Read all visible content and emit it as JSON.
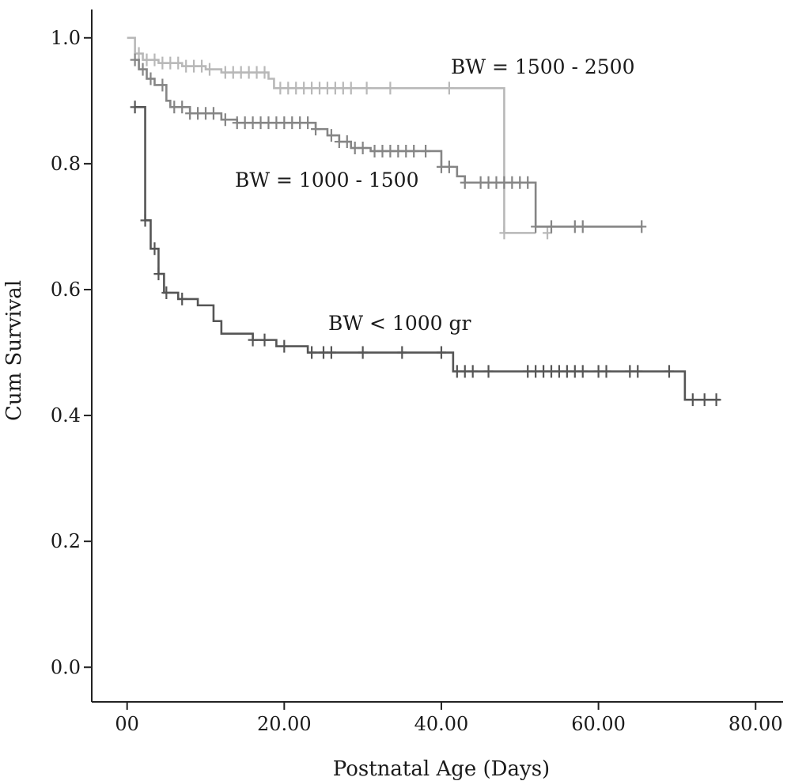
{
  "chart_data": {
    "type": "line",
    "subtype": "kaplan-meier-step",
    "xlabel": "Postnatal Age (Days)",
    "ylabel": "Cum Survival",
    "xlim": [
      -4.5,
      83.5
    ],
    "ylim": [
      -0.055,
      1.045
    ],
    "x_ticks": [
      {
        "value": 0,
        "label": "00"
      },
      {
        "value": 20,
        "label": "20.00"
      },
      {
        "value": 40,
        "label": "40.00"
      },
      {
        "value": 60,
        "label": "60.00"
      },
      {
        "value": 80,
        "label": "80.00"
      }
    ],
    "y_ticks": [
      {
        "value": 0.0,
        "label": "0.0"
      },
      {
        "value": 0.2,
        "label": "0.2"
      },
      {
        "value": 0.4,
        "label": "0.4"
      },
      {
        "value": 0.6,
        "label": "0.6"
      },
      {
        "value": 0.8,
        "label": "0.8"
      },
      {
        "value": 1.0,
        "label": "1.0"
      }
    ],
    "grid": false,
    "series": [
      {
        "name": "BW = 1500 - 2500",
        "color": "#b8b8b8",
        "steps": [
          [
            0,
            1.0
          ],
          [
            1,
            0.975
          ],
          [
            2,
            0.965
          ],
          [
            4,
            0.96
          ],
          [
            7,
            0.955
          ],
          [
            10,
            0.95
          ],
          [
            12,
            0.945
          ],
          [
            18,
            0.935
          ],
          [
            18.7,
            0.92
          ],
          [
            48,
            0.69
          ],
          [
            52,
            0.69
          ]
        ],
        "censored": [
          [
            1.5,
            0.975
          ],
          [
            2.5,
            0.965
          ],
          [
            3.5,
            0.965
          ],
          [
            4.5,
            0.96
          ],
          [
            5.5,
            0.96
          ],
          [
            6.5,
            0.96
          ],
          [
            7.5,
            0.955
          ],
          [
            8.5,
            0.955
          ],
          [
            9.5,
            0.955
          ],
          [
            10.5,
            0.95
          ],
          [
            12.5,
            0.945
          ],
          [
            13.5,
            0.945
          ],
          [
            14.5,
            0.945
          ],
          [
            15.5,
            0.945
          ],
          [
            16.5,
            0.945
          ],
          [
            17.5,
            0.945
          ],
          [
            19.5,
            0.92
          ],
          [
            20.5,
            0.92
          ],
          [
            21.5,
            0.92
          ],
          [
            22.5,
            0.92
          ],
          [
            23.5,
            0.92
          ],
          [
            24.5,
            0.92
          ],
          [
            25.5,
            0.92
          ],
          [
            26.5,
            0.92
          ],
          [
            27.5,
            0.92
          ],
          [
            28.5,
            0.92
          ],
          [
            30.5,
            0.92
          ],
          [
            33.5,
            0.92
          ],
          [
            41,
            0.92
          ],
          [
            48,
            0.69
          ],
          [
            53.5,
            0.69
          ]
        ]
      },
      {
        "name": "BW = 1000 - 1500",
        "color": "#858585",
        "steps": [
          [
            1,
            0.965
          ],
          [
            1.5,
            0.95
          ],
          [
            2.5,
            0.935
          ],
          [
            3.5,
            0.925
          ],
          [
            5,
            0.9
          ],
          [
            5.5,
            0.89
          ],
          [
            8,
            0.88
          ],
          [
            12,
            0.87
          ],
          [
            14,
            0.865
          ],
          [
            24,
            0.855
          ],
          [
            25.5,
            0.845
          ],
          [
            27,
            0.835
          ],
          [
            28.5,
            0.825
          ],
          [
            31,
            0.82
          ],
          [
            40,
            0.795
          ],
          [
            42,
            0.78
          ],
          [
            43,
            0.77
          ],
          [
            52,
            0.7
          ],
          [
            65.5,
            0.7
          ]
        ],
        "censored": [
          [
            1,
            0.965
          ],
          [
            2,
            0.95
          ],
          [
            3,
            0.935
          ],
          [
            4.5,
            0.925
          ],
          [
            6,
            0.89
          ],
          [
            7,
            0.89
          ],
          [
            8,
            0.88
          ],
          [
            9,
            0.88
          ],
          [
            10,
            0.88
          ],
          [
            11,
            0.88
          ],
          [
            12.5,
            0.87
          ],
          [
            14,
            0.865
          ],
          [
            15,
            0.865
          ],
          [
            16,
            0.865
          ],
          [
            17,
            0.865
          ],
          [
            18,
            0.865
          ],
          [
            19,
            0.865
          ],
          [
            20,
            0.865
          ],
          [
            21,
            0.865
          ],
          [
            22,
            0.865
          ],
          [
            23,
            0.865
          ],
          [
            24,
            0.855
          ],
          [
            26,
            0.845
          ],
          [
            27,
            0.835
          ],
          [
            28,
            0.835
          ],
          [
            29,
            0.825
          ],
          [
            30,
            0.825
          ],
          [
            31.5,
            0.82
          ],
          [
            32.5,
            0.82
          ],
          [
            33.5,
            0.82
          ],
          [
            34.5,
            0.82
          ],
          [
            35.5,
            0.82
          ],
          [
            36.5,
            0.82
          ],
          [
            38,
            0.82
          ],
          [
            40,
            0.795
          ],
          [
            41,
            0.795
          ],
          [
            43,
            0.77
          ],
          [
            45,
            0.77
          ],
          [
            46,
            0.77
          ],
          [
            47,
            0.77
          ],
          [
            48,
            0.77
          ],
          [
            49,
            0.77
          ],
          [
            50,
            0.77
          ],
          [
            51,
            0.77
          ],
          [
            52,
            0.7
          ],
          [
            54,
            0.7
          ],
          [
            57,
            0.7
          ],
          [
            58,
            0.7
          ],
          [
            65.5,
            0.7
          ]
        ]
      },
      {
        "name": "BW < 1000 gr",
        "color": "#555555",
        "steps": [
          [
            1,
            0.89
          ],
          [
            2.3,
            0.71
          ],
          [
            3,
            0.665
          ],
          [
            4,
            0.625
          ],
          [
            4.7,
            0.595
          ],
          [
            6.5,
            0.585
          ],
          [
            9,
            0.575
          ],
          [
            11,
            0.55
          ],
          [
            12,
            0.53
          ],
          [
            16,
            0.52
          ],
          [
            19,
            0.51
          ],
          [
            23,
            0.5
          ],
          [
            41.5,
            0.47
          ],
          [
            71,
            0.425
          ],
          [
            75.5,
            0.425
          ]
        ],
        "censored": [
          [
            1,
            0.89
          ],
          [
            2.3,
            0.71
          ],
          [
            3.5,
            0.665
          ],
          [
            4,
            0.625
          ],
          [
            5,
            0.595
          ],
          [
            7,
            0.585
          ],
          [
            16,
            0.52
          ],
          [
            17.5,
            0.52
          ],
          [
            20,
            0.51
          ],
          [
            23.5,
            0.5
          ],
          [
            25,
            0.5
          ],
          [
            26,
            0.5
          ],
          [
            30,
            0.5
          ],
          [
            35,
            0.5
          ],
          [
            40,
            0.5
          ],
          [
            42,
            0.47
          ],
          [
            43,
            0.47
          ],
          [
            44,
            0.47
          ],
          [
            46,
            0.47
          ],
          [
            51,
            0.47
          ],
          [
            52,
            0.47
          ],
          [
            53,
            0.47
          ],
          [
            54,
            0.47
          ],
          [
            55,
            0.47
          ],
          [
            56,
            0.47
          ],
          [
            57,
            0.47
          ],
          [
            58,
            0.47
          ],
          [
            60,
            0.47
          ],
          [
            61,
            0.47
          ],
          [
            64,
            0.47
          ],
          [
            65,
            0.47
          ],
          [
            69,
            0.47
          ],
          [
            72,
            0.425
          ],
          [
            73.5,
            0.425
          ],
          [
            75,
            0.425
          ]
        ]
      }
    ]
  }
}
